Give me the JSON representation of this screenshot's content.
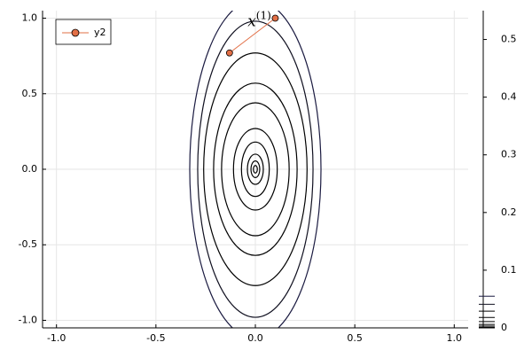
{
  "chart_data": {
    "type": "contour",
    "xlim": [
      -1.07,
      1.07
    ],
    "ylim": [
      -1.05,
      1.05
    ],
    "xticks": [
      {
        "value": -1,
        "label": "-1.0"
      },
      {
        "value": -0.5,
        "label": "-0.5"
      },
      {
        "value": 0,
        "label": "0.0"
      },
      {
        "value": 0.5,
        "label": "0.5"
      },
      {
        "value": 1,
        "label": "1.0"
      }
    ],
    "yticks": [
      {
        "value": -1,
        "label": "-1.0"
      },
      {
        "value": -0.5,
        "label": "-0.5"
      },
      {
        "value": 0,
        "label": "0.0"
      },
      {
        "value": 0.5,
        "label": "0.5"
      },
      {
        "value": 1,
        "label": "1.0"
      }
    ],
    "grid": true,
    "contours": [
      {
        "level": 0.055,
        "rx": 0.33,
        "ry": 1.12,
        "color": "#1a1a40"
      },
      {
        "level": 0.041,
        "rx": 0.29,
        "ry": 0.98,
        "color": "#101020"
      },
      {
        "level": 0.029,
        "rx": 0.26,
        "ry": 0.77,
        "color": "#000000"
      },
      {
        "level": 0.018,
        "rx": 0.21,
        "ry": 0.57,
        "color": "#000000"
      },
      {
        "level": 0.011,
        "rx": 0.17,
        "ry": 0.44,
        "color": "#000000"
      },
      {
        "level": 0.006,
        "rx": 0.11,
        "ry": 0.27,
        "color": "#000000"
      },
      {
        "level": 0.003,
        "rx": 0.07,
        "ry": 0.18,
        "color": "#000000"
      },
      {
        "level": 0.001,
        "rx": 0.04,
        "ry": 0.1,
        "color": "#000000"
      },
      {
        "level": 0.0005,
        "rx": 0.022,
        "ry": 0.055,
        "color": "#000000"
      },
      {
        "level": 0.0001,
        "rx": 0.01,
        "ry": 0.025,
        "color": "#000000"
      }
    ],
    "series": [
      {
        "name": "y2",
        "color": "#e26f46",
        "x": [
          -0.13,
          0.1
        ],
        "values": [
          0.77,
          1.0
        ]
      }
    ],
    "annotation": {
      "text": "x",
      "sup": "(1)",
      "x": 0.02,
      "y": 1.0
    },
    "colorbar": {
      "ylim": [
        0,
        0.55
      ],
      "yticks": [
        0,
        0.1,
        0.2,
        0.3,
        0.4,
        0.5
      ]
    },
    "legend": "top-left"
  }
}
